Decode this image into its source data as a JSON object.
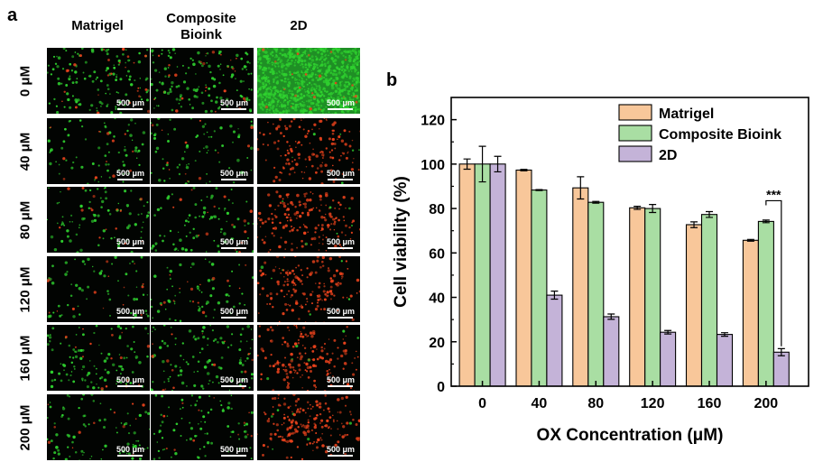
{
  "panel_a": {
    "letter": "a",
    "columns": [
      "Matrigel",
      "Composite\nBioink",
      "2D"
    ],
    "rows": [
      "0 μM",
      "40 μM",
      "80 μM",
      "120 μM",
      "160 μM",
      "200 μM"
    ],
    "scale_bar": "500 μm",
    "colors": {
      "live": "#2fd12f",
      "dead": "#e8421c",
      "background": "#020402"
    }
  },
  "panel_b": {
    "letter": "b"
  },
  "chart_data": {
    "type": "bar",
    "categories": [
      "0",
      "40",
      "80",
      "120",
      "160",
      "200"
    ],
    "series": [
      {
        "name": "Matrigel",
        "color": "#f8c79a",
        "values": [
          100,
          97.3,
          89.3,
          80.3,
          72.7,
          65.7
        ],
        "errors": [
          2.3,
          0.3,
          5.0,
          0.7,
          1.3,
          0.4
        ]
      },
      {
        "name": "Composite Bioink",
        "color": "#a9dea3",
        "values": [
          100,
          88.3,
          82.8,
          80.0,
          77.3,
          74.2
        ],
        "errors": [
          8.0,
          0.2,
          0.4,
          1.8,
          1.3,
          0.6
        ]
      },
      {
        "name": "2D",
        "color": "#c4b3d8",
        "values": [
          100,
          41.0,
          31.3,
          24.3,
          23.3,
          15.3
        ],
        "errors": [
          3.5,
          1.8,
          1.2,
          0.8,
          0.8,
          1.6
        ]
      }
    ],
    "xlabel": "OX Concentration (μM)",
    "ylabel": "Cell viability (%)",
    "ylim": [
      0,
      130
    ],
    "yticks": [
      0,
      20,
      40,
      60,
      80,
      100,
      120
    ],
    "legend": "top-right",
    "annotation": "***"
  }
}
